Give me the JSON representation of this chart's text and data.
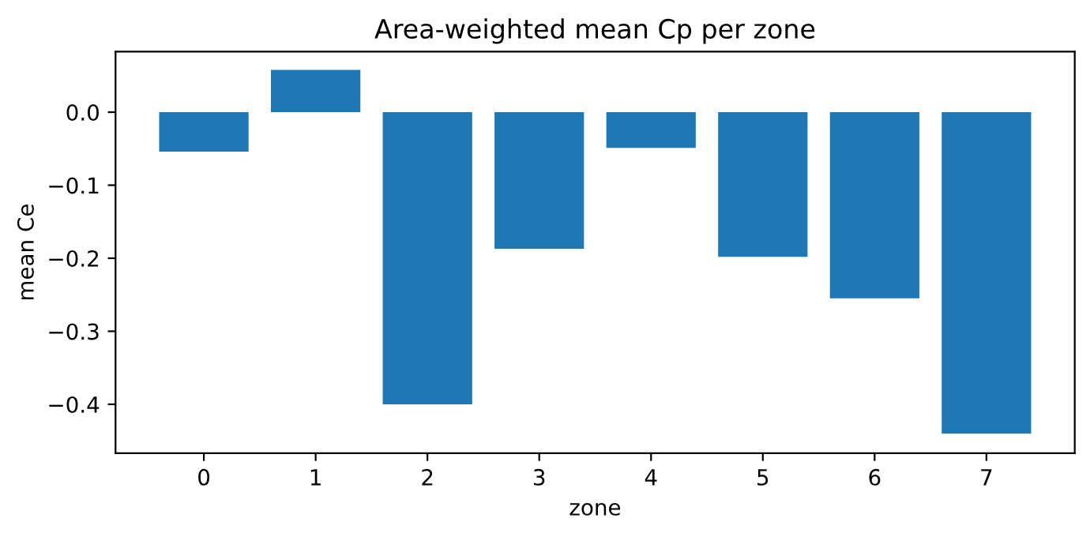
{
  "chart_data": {
    "type": "bar",
    "title": "Area-weighted mean Cp per zone",
    "xlabel": "zone",
    "ylabel": "mean Ce",
    "categories": [
      "0",
      "1",
      "2",
      "3",
      "4",
      "5",
      "6",
      "7"
    ],
    "values": [
      -0.054,
      0.058,
      -0.4,
      -0.187,
      -0.049,
      -0.198,
      -0.255,
      -0.44
    ],
    "color": "#1f77b4",
    "ylim": [
      -0.467,
      0.083
    ],
    "yticks": [
      {
        "value": 0.0,
        "label": "0.0"
      },
      {
        "value": -0.1,
        "label": "−0.1"
      },
      {
        "value": -0.2,
        "label": "−0.2"
      },
      {
        "value": -0.3,
        "label": "−0.3"
      },
      {
        "value": -0.4,
        "label": "−0.4"
      }
    ],
    "grid": false
  }
}
